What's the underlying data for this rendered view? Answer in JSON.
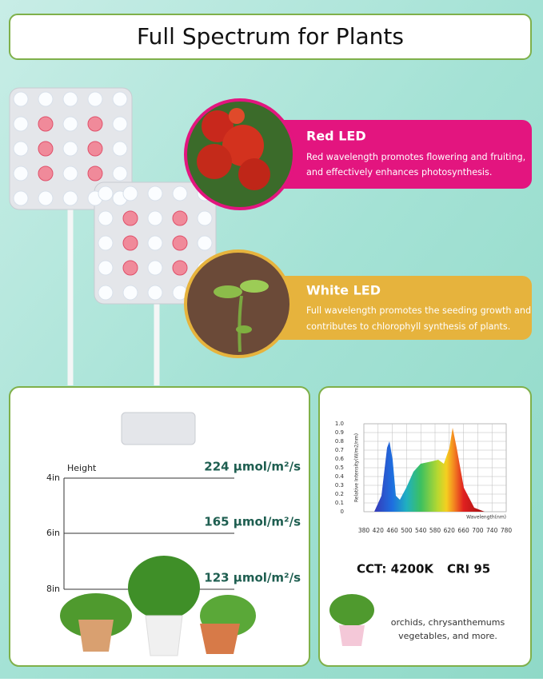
{
  "header": {
    "title": "Full Spectrum for Plants"
  },
  "features": [
    {
      "title": "Red LED",
      "lines": [
        "Red wavelength promotes flowering and fruiting,",
        "and effectively enhances photosynthesis."
      ]
    },
    {
      "title": "White LED",
      "lines": [
        "Full wavelength promotes the seeding growth and",
        "contributes to chlorophyll synthesis of plants."
      ]
    }
  ],
  "height_panel": {
    "axis_label": "Height",
    "levels": [
      {
        "height": "4in",
        "ppfd": "224 μmol/m²/s"
      },
      {
        "height": "6in",
        "ppfd": "165 μmol/m²/s"
      },
      {
        "height": "8in",
        "ppfd": "123 μmol/m²/s"
      }
    ]
  },
  "spectrum_panel": {
    "y_label": "Relative Intensity(W/m2/nm)",
    "x_label": "Wavelength(nm)",
    "yticks": [
      "1.0",
      "0.9",
      "0.8",
      "0.7",
      "0.6",
      "0.5",
      "0.4",
      "0.3",
      "0.2",
      "0.1",
      "0"
    ],
    "xticks": [
      "380",
      "420",
      "460",
      "500",
      "540",
      "580",
      "620",
      "660",
      "700",
      "740",
      "780"
    ],
    "specs": [
      "CCT: 4200K",
      "CRI 95"
    ],
    "caption": [
      "orchids, chrysanthemums",
      "vegetables, and more."
    ]
  }
}
